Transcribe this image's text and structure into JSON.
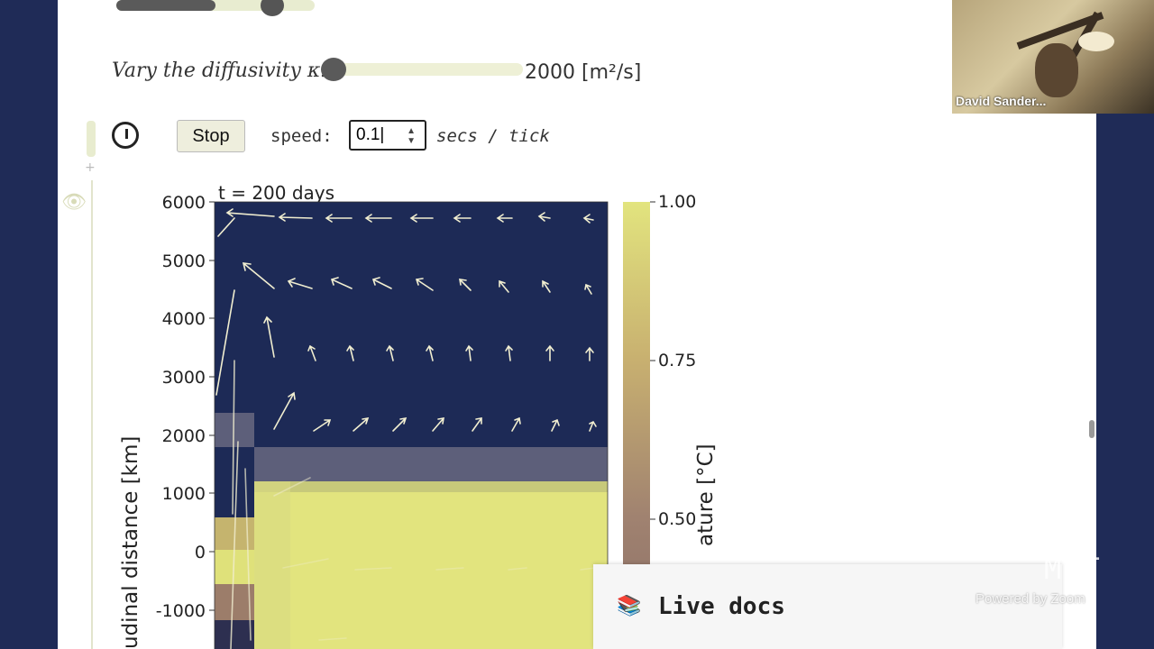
{
  "diffusivity": {
    "label": "Vary the diffusivity κ:",
    "value_text": "2000 [m²/s]"
  },
  "controls": {
    "stop_label": "Stop",
    "speed_label": "speed:",
    "speed_value": "0.1",
    "units_label": "secs / tick"
  },
  "plot": {
    "time_label": "t = 200 days",
    "y_ticks": [
      "6000",
      "5000",
      "4000",
      "3000",
      "2000",
      "1000",
      "0",
      "-1000"
    ],
    "y_axis_label": "udinal distance [km]",
    "colorbar_ticks": [
      "1.00",
      "0.75",
      "0.50"
    ],
    "colorbar_label": "ature [°C]",
    "colors": {
      "cold": "#1d2a56",
      "warm": "#e2e47e",
      "mid": "#5d5f7a",
      "accent": "#9a9a6a"
    }
  },
  "webcam": {
    "name": "David Sander..."
  },
  "livedocs": {
    "icon": "books-icon",
    "label": "Live docs"
  },
  "watermark": {
    "text": "Powered by Zoom",
    "mark": "MIT"
  }
}
